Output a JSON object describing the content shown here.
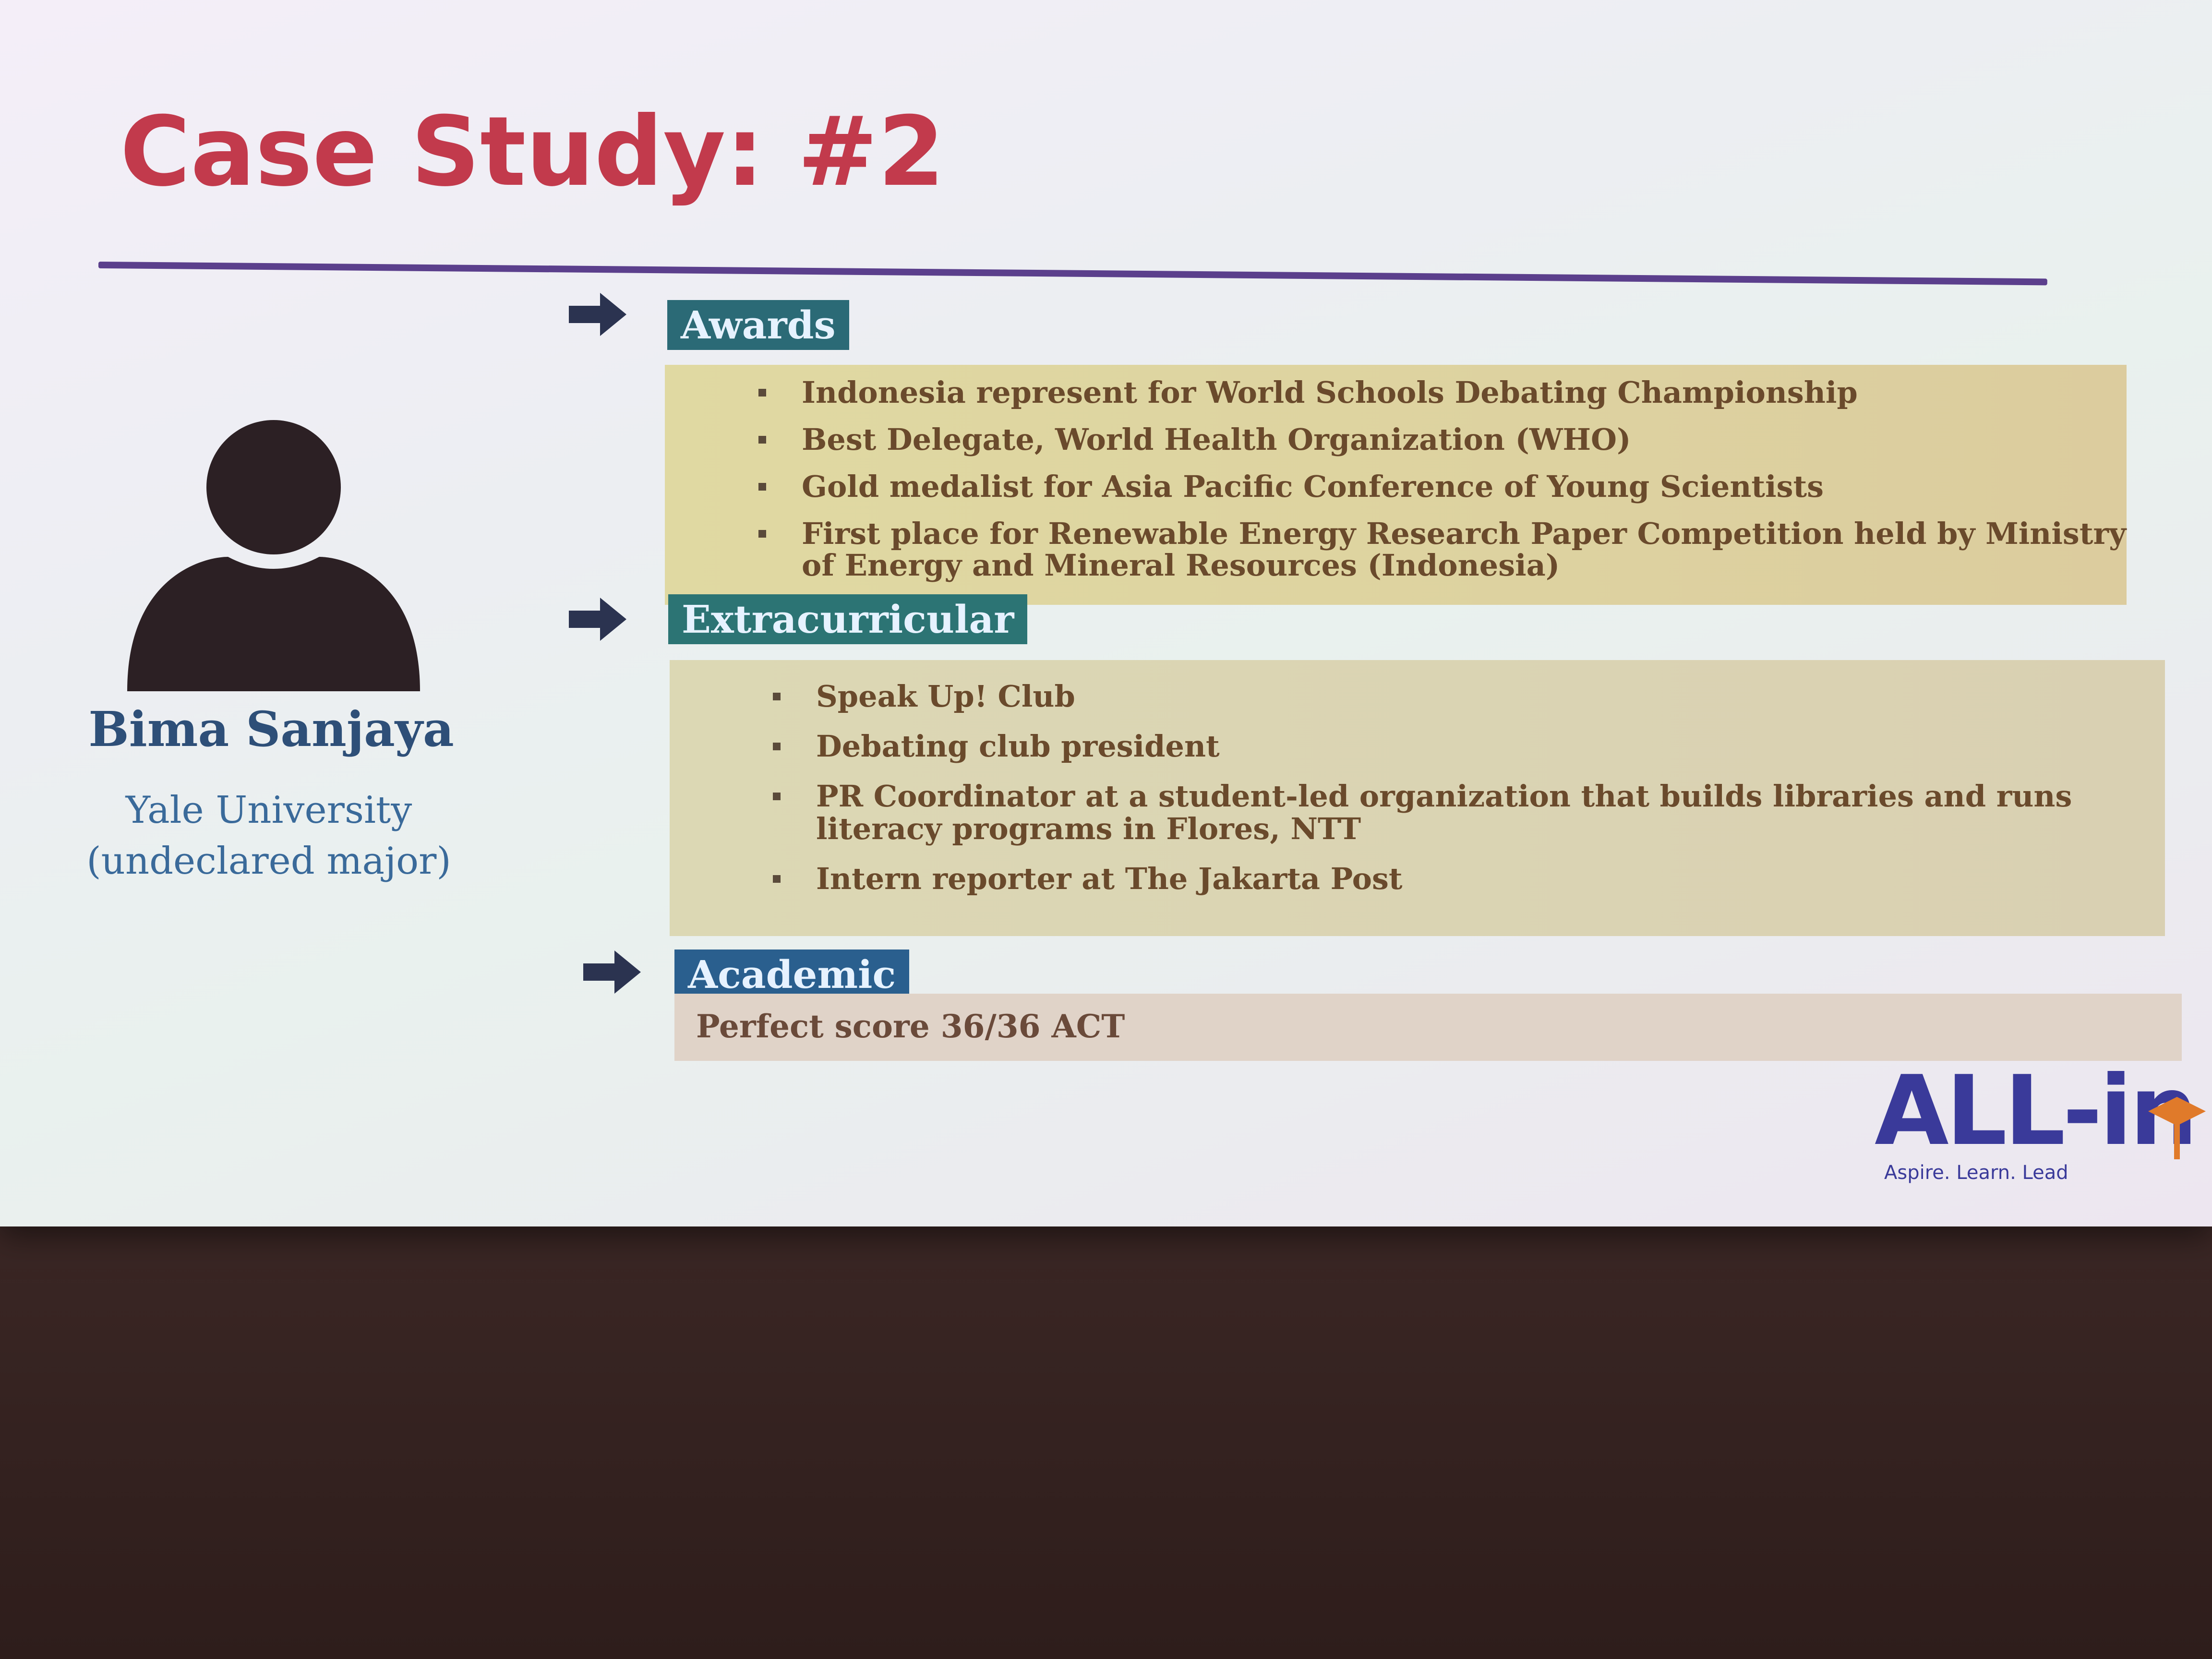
{
  "slide": {
    "title": "Case Study: #2"
  },
  "person": {
    "icon": "person-silhouette-icon",
    "name": "Bima Sanjaya",
    "school_line1": "Yale University",
    "school_line2": "(undeclared major)"
  },
  "sections": {
    "awards": {
      "label": "Awards",
      "items": [
        "Indonesia represent for World Schools Debating Championship",
        "Best Delegate, World Health Organization (WHO)",
        "Gold medalist for Asia Pacific Conference of Young Scientists",
        "First place for Renewable Energy Research Paper Competition held by Ministry",
        "of Energy and Mineral Resources (Indonesia)"
      ]
    },
    "extracurricular": {
      "label": "Extracurricular",
      "items": [
        "Speak Up! Club",
        "Debating club president",
        "PR Coordinator at a student-led organization that builds libraries and runs",
        "literacy programs in Flores, NTT",
        "Intern reporter at The Jakarta Post"
      ]
    },
    "academic": {
      "label": "Academic",
      "text": "Perfect score 36/36 ACT"
    }
  },
  "logo": {
    "text": "ALL-in",
    "tagline": "Aspire. Learn. Lead"
  },
  "colors": {
    "title": "#c23a4c",
    "rule": "#5b3f8c",
    "name": "#2e4f78",
    "label_bg": "#2b6a76"
  }
}
